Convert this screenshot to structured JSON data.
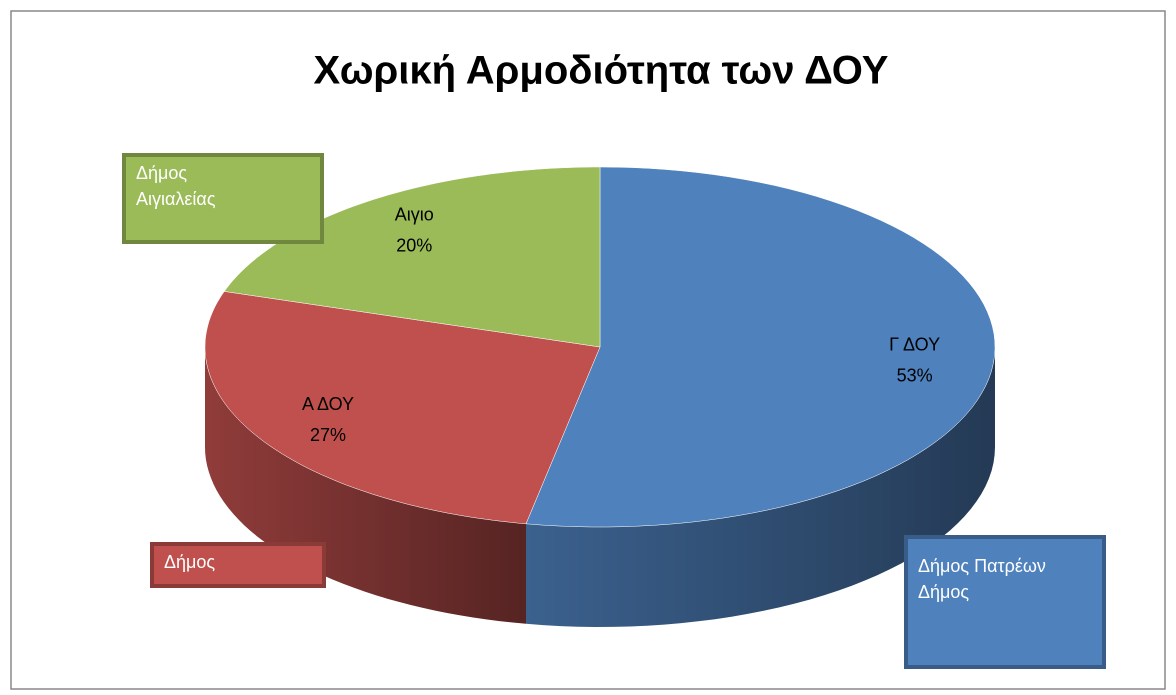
{
  "chart_data": {
    "type": "pie3d",
    "title": "Χωρική Αρμοδιότητα των ΔΟΥ",
    "categories": [
      "Γ ΔΟΥ",
      "Α ΔΟΥ",
      "Αιγιο"
    ],
    "values": [
      53,
      27,
      20
    ],
    "value_labels": [
      "53%",
      "27%",
      "20%"
    ],
    "colors": [
      "#4f81bd",
      "#c0504d",
      "#9bbb59"
    ],
    "annotations": [
      {
        "text": "Δήμος\nΑιγιαλείας",
        "color": "#9bbb59"
      },
      {
        "text": "Δήμος",
        "color": "#c0504d"
      },
      {
        "text": "Δήμος Πατρέων\nΔήμος",
        "color": "#4f81bd"
      }
    ]
  }
}
